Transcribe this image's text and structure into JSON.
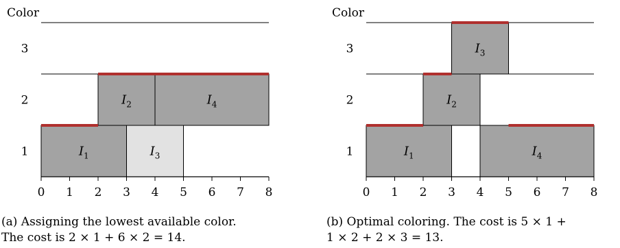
{
  "panels": [
    {
      "id": "a",
      "ylabel": "Color",
      "colors": [
        "1",
        "2",
        "3"
      ],
      "xticks": [
        "0",
        "1",
        "2",
        "3",
        "4",
        "5",
        "6",
        "7",
        "8"
      ],
      "intervals": [
        {
          "name": "I",
          "sub": "1",
          "start": 0,
          "end": 3,
          "color": 1,
          "fill": "#a3a3a3"
        },
        {
          "name": "I",
          "sub": "3",
          "start": 3,
          "end": 5,
          "color": 1,
          "fill": "#e2e2e2"
        },
        {
          "name": "I",
          "sub": "2",
          "start": 2,
          "end": 4,
          "color": 2,
          "fill": "#a3a3a3"
        },
        {
          "name": "I",
          "sub": "4",
          "start": 4,
          "end": 8,
          "color": 2,
          "fill": "#a3a3a3"
        }
      ],
      "highlights": [
        {
          "start": 0,
          "end": 2,
          "color": 1
        },
        {
          "start": 2,
          "end": 8,
          "color": 2
        }
      ],
      "caption": {
        "line1": "(a) Assigning the lowest available color.",
        "line2": "The cost is 2 × 1 + 6 × 2 = 14."
      }
    },
    {
      "id": "b",
      "ylabel": "Color",
      "colors": [
        "1",
        "2",
        "3"
      ],
      "xticks": [
        "0",
        "1",
        "2",
        "3",
        "4",
        "5",
        "6",
        "7",
        "8"
      ],
      "intervals": [
        {
          "name": "I",
          "sub": "1",
          "start": 0,
          "end": 3,
          "color": 1,
          "fill": "#a3a3a3"
        },
        {
          "name": "I",
          "sub": "4",
          "start": 4,
          "end": 8,
          "color": 1,
          "fill": "#a3a3a3"
        },
        {
          "name": "I",
          "sub": "2",
          "start": 2,
          "end": 4,
          "color": 2,
          "fill": "#a3a3a3"
        },
        {
          "name": "I",
          "sub": "3",
          "start": 3,
          "end": 5,
          "color": 3,
          "fill": "#a3a3a3"
        }
      ],
      "highlights": [
        {
          "start": 0,
          "end": 2,
          "color": 1
        },
        {
          "start": 5,
          "end": 8,
          "color": 1
        },
        {
          "start": 2,
          "end": 3,
          "color": 2
        },
        {
          "start": 3,
          "end": 5,
          "color": 3
        }
      ],
      "caption": {
        "line1": "(b) Optimal coloring. The cost is 5 × 1 +",
        "line2": "1 × 2 + 2 × 3 = 13."
      }
    }
  ],
  "style": {
    "highlight": "#b0302e",
    "stroke": "#000000"
  }
}
